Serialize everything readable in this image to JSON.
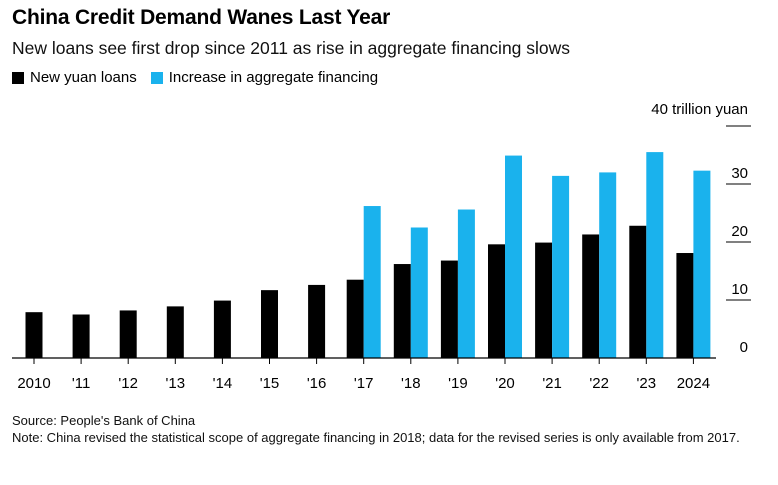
{
  "chart_data": {
    "type": "bar",
    "title": "China Credit Demand Wanes Last Year",
    "subtitle": "New loans see first drop since 2011 as rise in aggregate financing slows",
    "categories": [
      "2010",
      "'11",
      "'12",
      "'13",
      "'14",
      "'15",
      "'16",
      "'17",
      "'18",
      "'19",
      "'20",
      "'21",
      "'22",
      "'23",
      "2024"
    ],
    "series": [
      {
        "name": "New yuan loans",
        "color": "#000000",
        "values": [
          7.9,
          7.5,
          8.2,
          8.9,
          9.9,
          11.7,
          12.6,
          13.5,
          16.2,
          16.8,
          19.6,
          19.9,
          21.3,
          22.8,
          18.1
        ]
      },
      {
        "name": "Increase in aggregate financing",
        "color": "#1ab2ed",
        "values": [
          null,
          null,
          null,
          null,
          null,
          null,
          null,
          26.2,
          22.5,
          25.6,
          34.9,
          31.4,
          32.0,
          35.5,
          32.3
        ]
      }
    ],
    "y_unit_label": "40 trillion yuan",
    "yticks": [
      "0",
      "10",
      "20",
      "30"
    ],
    "ylim": [
      0,
      40
    ],
    "legend_position": "top-left",
    "grid": false
  },
  "footer": {
    "source": "Source: People's Bank of China",
    "note": "Note: China revised the statistical scope of aggregate financing in 2018; data for the revised series is only available from 2017."
  }
}
